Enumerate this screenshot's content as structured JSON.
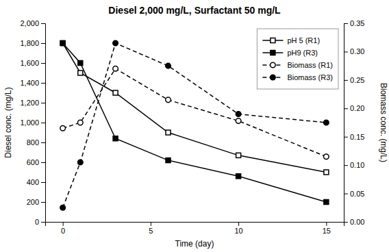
{
  "chart_data": {
    "type": "line",
    "title": "Diesel 2,000 mg/L, Surfactant 50 mg/L",
    "x_label": "Time (day)",
    "y_label": "Diesel conc. (mg/L)",
    "y2_label": "Biomass conc. (mg/L)",
    "x": [
      0,
      1,
      3,
      6,
      10,
      15
    ],
    "series": [
      {
        "name": "pH 5 (R1)",
        "color": "#000000",
        "marker": "square-open",
        "line_style": "solid",
        "values": [
          1800,
          1500,
          1300,
          900,
          670,
          500
        ]
      },
      {
        "name": "pH9 (R3)",
        "color": "#000000",
        "marker": "square",
        "line_style": "solid",
        "values": [
          1800,
          1600,
          840,
          620,
          460,
          200
        ]
      },
      {
        "name": "Biomass (R1)",
        "color": "#000000",
        "marker": "circle-open",
        "line_style": "dashed",
        "axis": "y2",
        "values": [
          0.165,
          0.175,
          0.27,
          0.215,
          0.178,
          0.115
        ]
      },
      {
        "name": "Biomass (R3)",
        "color": "#000000",
        "marker": "circle",
        "line_style": "dashed",
        "axis": "y2",
        "values": [
          0.025,
          0.105,
          0.315,
          0.275,
          0.19,
          0.175
        ]
      }
    ],
    "xlim": [
      -1,
      16
    ],
    "xticks": [
      0,
      5,
      10,
      15
    ],
    "ylim": [
      0,
      2000
    ],
    "yticks": [
      0,
      200,
      400,
      600,
      800,
      {
        "value": 1000,
        "label": "1,000"
      },
      {
        "value": 1200,
        "label": "1,200"
      },
      {
        "value": 1400,
        "label": "1,400"
      },
      {
        "value": 1600,
        "label": "1,600"
      },
      {
        "value": 1800,
        "label": "1,800"
      },
      {
        "value": 2000,
        "label": "2,000"
      }
    ],
    "y2lim": [
      0,
      0.35
    ],
    "y2ticks": [
      {
        "value": 0,
        "label": "0.00"
      },
      0.05,
      {
        "value": 0.1,
        "label": "0.10"
      },
      0.15,
      {
        "value": 0.2,
        "label": "0.20"
      },
      0.25,
      {
        "value": 0.3,
        "label": "0.30"
      },
      0.35
    ],
    "legend": "upper right",
    "grid": false
  }
}
